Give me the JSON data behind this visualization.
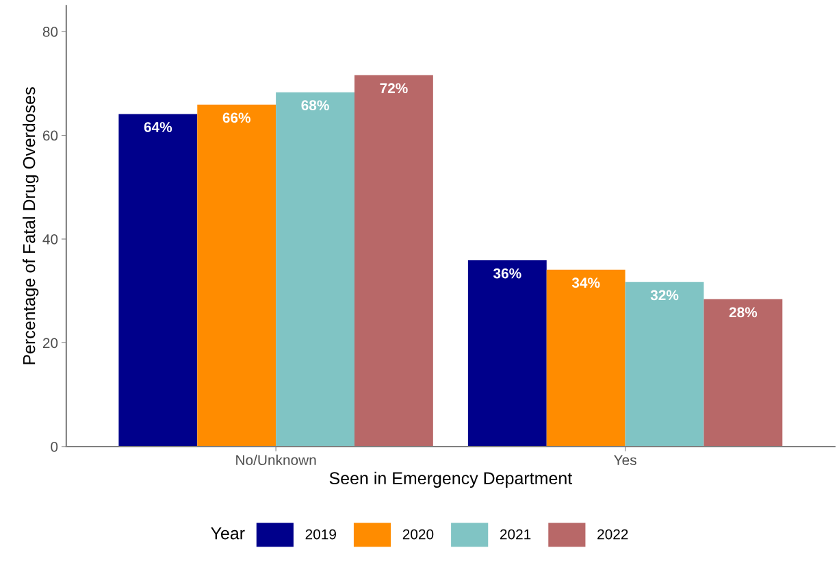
{
  "chart_data": {
    "type": "bar",
    "xlabel": "Seen in Emergency Department",
    "ylabel": "Percentage of Fatal Drug Overdoses",
    "categories": [
      "No/Unknown",
      "Yes"
    ],
    "series": [
      {
        "name": "2019",
        "color": "#00008b",
        "values": [
          64.1,
          35.9
        ],
        "value_labels": [
          "64%",
          "36%"
        ]
      },
      {
        "name": "2020",
        "color": "#ff8c00",
        "values": [
          65.9,
          34.1
        ],
        "value_labels": [
          "66%",
          "34%"
        ]
      },
      {
        "name": "2021",
        "color": "#80c4c4",
        "values": [
          68.3,
          31.7
        ],
        "value_labels": [
          "68%",
          "32%"
        ]
      },
      {
        "name": "2022",
        "color": "#b86868",
        "values": [
          71.6,
          28.4
        ],
        "value_labels": [
          "72%",
          "28%"
        ]
      }
    ],
    "ylim": [
      0,
      85
    ],
    "yticks": [
      0,
      20,
      40,
      60,
      80
    ],
    "grid": false,
    "legend": "bottom",
    "legend_title": "Year"
  }
}
